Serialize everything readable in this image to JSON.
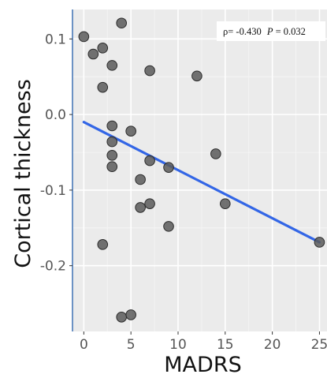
{
  "chart_data": {
    "type": "scatter",
    "xlabel": "MADRS",
    "ylabel": "Cortical thickness",
    "xlim": [
      -1.2,
      25.8
    ],
    "ylim": [
      -0.287,
      0.139
    ],
    "x_ticks": [
      0,
      5,
      10,
      15,
      20,
      25
    ],
    "x_tick_labels": [
      "0",
      "5",
      "10",
      "15",
      "20",
      "25"
    ],
    "y_ticks": [
      0.1,
      0.0,
      -0.1,
      -0.2
    ],
    "y_tick_labels": [
      "0.1",
      "0.0",
      "-0.1",
      "-0.2"
    ],
    "grid": true,
    "colors": {
      "panel": "#ebebeb",
      "grid_major": "#ffffff",
      "grid_minor": "#f5f5f5",
      "point_fill": "#5a5a5a",
      "point_stroke": "#2b2b2b",
      "fit_line": "#3366e6",
      "axis_line": "#4a7ab8"
    },
    "points": [
      {
        "x": 0,
        "y": 0.103
      },
      {
        "x": 1,
        "y": 0.08
      },
      {
        "x": 2,
        "y": 0.088
      },
      {
        "x": 2,
        "y": 0.036
      },
      {
        "x": 3,
        "y": 0.065
      },
      {
        "x": 4,
        "y": 0.121
      },
      {
        "x": 7,
        "y": 0.058
      },
      {
        "x": 12,
        "y": 0.051
      },
      {
        "x": 3,
        "y": -0.015
      },
      {
        "x": 5,
        "y": -0.022
      },
      {
        "x": 3,
        "y": -0.036
      },
      {
        "x": 3,
        "y": -0.054
      },
      {
        "x": 3,
        "y": -0.069
      },
      {
        "x": 7,
        "y": -0.061
      },
      {
        "x": 9,
        "y": -0.07
      },
      {
        "x": 14,
        "y": -0.052
      },
      {
        "x": 6,
        "y": -0.086
      },
      {
        "x": 6,
        "y": -0.123
      },
      {
        "x": 7,
        "y": -0.118
      },
      {
        "x": 15,
        "y": -0.118
      },
      {
        "x": 9,
        "y": -0.148
      },
      {
        "x": 2,
        "y": -0.172
      },
      {
        "x": 25,
        "y": -0.169
      },
      {
        "x": 4,
        "y": -0.268
      },
      {
        "x": 5,
        "y": -0.265
      }
    ],
    "fit_line": {
      "x": [
        0,
        25
      ],
      "y": [
        -0.01,
        -0.169
      ]
    },
    "annotation": {
      "rho_text": "ρ= -0.430",
      "p_label": "P",
      "p_value_text": " = 0.032"
    }
  }
}
